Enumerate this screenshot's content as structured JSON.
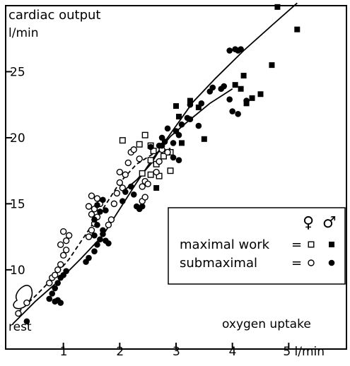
{
  "chart_data": {
    "type": "scatter",
    "title": "cardiac output",
    "ylabel": "l/min",
    "xlabel": "oxygen uptake",
    "x_unit": "5 l/min",
    "x_ticks": [
      1,
      2,
      3,
      4,
      5
    ],
    "x_tick_labels": [
      "1",
      "2",
      "3",
      "4",
      "5 l/min"
    ],
    "y_ticks": [
      10,
      15,
      20,
      25
    ],
    "y_tick_labels": [
      "10",
      "15",
      "20",
      "25"
    ],
    "xlim": [
      0,
      6
    ],
    "ylim": [
      4,
      30
    ],
    "grid": false,
    "legend_placement": "lower-right",
    "annotation_rest": "rest",
    "legend": {
      "female_symbol": "♀",
      "male_symbol": "♂",
      "rows": [
        {
          "label": "maximal work",
          "eq": "="
        },
        {
          "label": "submaximal",
          "eq": "="
        }
      ]
    },
    "series": [
      {
        "name": "maximal work ♀",
        "marker": "open-square",
        "points": [
          [
            2.05,
            19.8
          ],
          [
            2.35,
            19.5
          ],
          [
            2.45,
            20.2
          ],
          [
            2.55,
            19.4
          ],
          [
            2.6,
            19.0
          ],
          [
            2.55,
            18.3
          ],
          [
            2.65,
            18.0
          ],
          [
            2.78,
            18.6
          ],
          [
            2.9,
            18.9
          ],
          [
            2.9,
            17.5
          ],
          [
            2.7,
            17.1
          ],
          [
            2.4,
            17.3
          ],
          [
            2.55,
            17.2
          ]
        ]
      },
      {
        "name": "maximal work ♂",
        "marker": "filled-square",
        "points": [
          [
            2.65,
            16.2
          ],
          [
            3.1,
            19.6
          ],
          [
            3.05,
            21.6
          ],
          [
            3.0,
            22.4
          ],
          [
            3.25,
            22.8
          ],
          [
            3.4,
            22.3
          ],
          [
            3.5,
            19.9
          ],
          [
            4.05,
            24.0
          ],
          [
            4.15,
            23.7
          ],
          [
            4.2,
            24.7
          ],
          [
            4.25,
            22.6
          ],
          [
            4.5,
            23.3
          ],
          [
            4.35,
            23.0
          ],
          [
            4.7,
            25.5
          ],
          [
            4.8,
            29.9
          ],
          [
            5.15,
            28.2
          ]
        ]
      },
      {
        "name": "submaximal ♀",
        "marker": "open-circle",
        "points": [
          [
            0.2,
            6.7
          ],
          [
            0.35,
            7.5
          ],
          [
            0.75,
            9.0
          ],
          [
            0.8,
            9.4
          ],
          [
            0.85,
            9.6
          ],
          [
            0.9,
            10.0
          ],
          [
            0.95,
            10.4
          ],
          [
            1.0,
            11.1
          ],
          [
            1.05,
            11.5
          ],
          [
            0.95,
            11.9
          ],
          [
            1.05,
            12.2
          ],
          [
            1.1,
            12.6
          ],
          [
            1.0,
            12.9
          ],
          [
            1.45,
            12.5
          ],
          [
            1.5,
            13.0
          ],
          [
            1.55,
            13.5
          ],
          [
            1.6,
            14.0
          ],
          [
            1.55,
            14.6
          ],
          [
            1.65,
            15.0
          ],
          [
            1.6,
            15.4
          ],
          [
            1.5,
            15.6
          ],
          [
            1.45,
            14.8
          ],
          [
            1.5,
            14.2
          ],
          [
            1.8,
            13.4
          ],
          [
            1.85,
            13.8
          ],
          [
            1.9,
            15.0
          ],
          [
            1.95,
            15.8
          ],
          [
            2.0,
            16.6
          ],
          [
            2.05,
            16.2
          ],
          [
            2.0,
            17.4
          ],
          [
            2.1,
            17.2
          ],
          [
            2.15,
            18.1
          ],
          [
            2.2,
            18.9
          ],
          [
            2.25,
            19.1
          ],
          [
            2.35,
            18.4
          ],
          [
            2.4,
            16.3
          ],
          [
            2.45,
            16.7
          ],
          [
            2.5,
            16.5
          ],
          [
            2.4,
            15.2
          ],
          [
            2.45,
            15.5
          ],
          [
            2.65,
            17.4
          ],
          [
            2.7,
            18.2
          ],
          [
            2.75,
            19.1
          ],
          [
            2.85,
            18.9
          ]
        ]
      },
      {
        "name": "submaximal ♂",
        "marker": "filled-circle",
        "points": [
          [
            0.35,
            6.1
          ],
          [
            0.75,
            7.8
          ],
          [
            0.8,
            8.2
          ],
          [
            0.85,
            8.6
          ],
          [
            0.9,
            9.0
          ],
          [
            0.95,
            9.4
          ],
          [
            0.85,
            7.6
          ],
          [
            1.0,
            9.6
          ],
          [
            1.05,
            9.9
          ],
          [
            1.4,
            10.6
          ],
          [
            1.45,
            10.9
          ],
          [
            1.55,
            11.4
          ],
          [
            1.6,
            11.9
          ],
          [
            1.65,
            12.3
          ],
          [
            1.7,
            12.7
          ],
          [
            1.6,
            13.4
          ],
          [
            1.55,
            13.8
          ],
          [
            1.65,
            14.4
          ],
          [
            1.6,
            14.9
          ],
          [
            1.7,
            15.3
          ],
          [
            1.75,
            14.5
          ],
          [
            1.7,
            13.0
          ],
          [
            2.05,
            15.2
          ],
          [
            2.1,
            15.9
          ],
          [
            2.2,
            16.3
          ],
          [
            2.25,
            15.7
          ],
          [
            2.3,
            14.8
          ],
          [
            2.35,
            14.6
          ],
          [
            2.4,
            14.8
          ],
          [
            2.55,
            19.3
          ],
          [
            2.7,
            19.4
          ],
          [
            2.75,
            20.0
          ],
          [
            2.8,
            19.7
          ],
          [
            2.85,
            20.7
          ],
          [
            2.95,
            19.6
          ],
          [
            3.0,
            20.5
          ],
          [
            3.05,
            20.2
          ],
          [
            3.1,
            21.0
          ],
          [
            3.2,
            21.5
          ],
          [
            3.25,
            22.5
          ],
          [
            3.45,
            22.6
          ],
          [
            3.6,
            23.5
          ],
          [
            3.65,
            23.8
          ],
          [
            3.8,
            23.7
          ],
          [
            3.85,
            23.9
          ],
          [
            3.95,
            22.9
          ],
          [
            4.0,
            22.0
          ],
          [
            4.1,
            21.8
          ],
          [
            4.25,
            22.8
          ],
          [
            3.95,
            26.6
          ],
          [
            4.05,
            26.7
          ],
          [
            4.1,
            26.6
          ],
          [
            4.15,
            26.7
          ],
          [
            3.4,
            20.9
          ],
          [
            3.25,
            21.4
          ],
          [
            2.95,
            18.5
          ],
          [
            3.05,
            18.3
          ],
          [
            2.75,
            19.4
          ],
          [
            0.95,
            7.5
          ],
          [
            0.9,
            7.7
          ],
          [
            1.8,
            12.0
          ],
          [
            1.75,
            12.2
          ],
          [
            1.55,
            12.6
          ]
        ]
      }
    ],
    "regression_lines": [
      {
        "name": "submaximal ♀ trend",
        "style": "dashed",
        "points": [
          [
            0.2,
            6.8
          ],
          [
            0.5,
            8.0
          ],
          [
            0.8,
            9.3
          ],
          [
            1.1,
            10.8
          ],
          [
            1.4,
            12.7
          ],
          [
            1.7,
            14.6
          ],
          [
            2.0,
            16.6
          ],
          [
            2.3,
            18.0
          ],
          [
            2.6,
            18.8
          ],
          [
            2.9,
            19.2
          ]
        ]
      },
      {
        "name": "submaximal ♂ trend",
        "style": "solid",
        "points": [
          [
            0.1,
            5.9
          ],
          [
            0.5,
            7.6
          ],
          [
            0.9,
            9.1
          ],
          [
            1.3,
            10.8
          ],
          [
            1.7,
            12.6
          ],
          [
            2.0,
            14.6
          ],
          [
            2.3,
            16.6
          ],
          [
            2.6,
            18.5
          ],
          [
            2.9,
            20.1
          ],
          [
            3.2,
            21.2
          ],
          [
            3.6,
            22.6
          ],
          [
            4.0,
            23.7
          ]
        ]
      },
      {
        "name": "maximal trend",
        "style": "solid",
        "points": [
          [
            2.05,
            15.9
          ],
          [
            2.3,
            16.8
          ],
          [
            2.55,
            18.0
          ],
          [
            2.8,
            19.7
          ],
          [
            3.05,
            21.2
          ],
          [
            3.3,
            22.7
          ],
          [
            3.7,
            24.5
          ],
          [
            4.2,
            26.6
          ],
          [
            4.7,
            28.5
          ],
          [
            5.15,
            30.2
          ]
        ]
      }
    ]
  }
}
